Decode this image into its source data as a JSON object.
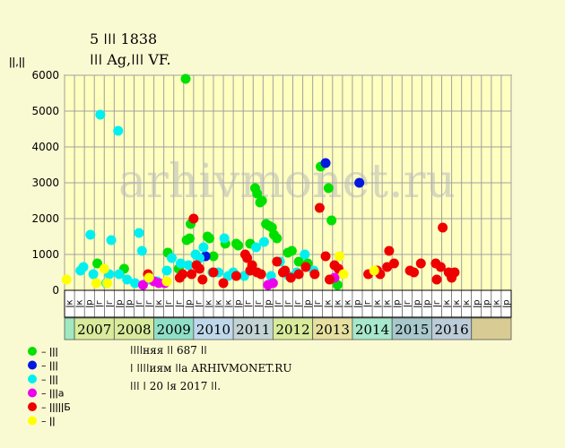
{
  "watermark": "arhivmonet.ru",
  "info": {
    "line1": "ǀǀǀǀняя ǀǀ 687 ǀǀ",
    "line2": "ǀ ǀǀǀǀиям ǀǀа ARHIVMONET.RU",
    "line3": "ǀǀǀ ǀ 20 ǀя 2017 ǀǀ."
  },
  "chart_data": {
    "type": "scatter",
    "title": "5 ǀǀǀ 1838",
    "subtitle": "ǀǀǀ Ag,ǀǀǀ VF.",
    "ylabel": "ǀǀ,ǀǀ",
    "ylim": [
      0,
      6000
    ],
    "yticks": [
      0,
      1000,
      2000,
      3000,
      4000,
      5000,
      6000
    ],
    "grid": true,
    "categories": [
      "ǀк",
      "ǀк",
      "ǀр",
      "ǀг",
      "ǀг",
      "ǀр",
      "ǀр",
      "ǀг",
      "ǀг",
      "ǀк",
      "ǀг",
      "ǀг",
      "ǀр",
      "ǀг",
      "ǀк",
      "ǀк",
      "ǀк",
      "ǀр",
      "ǀг",
      "ǀг",
      "ǀр",
      "ǀг",
      "ǀг",
      "ǀг",
      "ǀр",
      "ǀг",
      "ǀк",
      "ǀк",
      "ǀк",
      "ǀр",
      "ǀг",
      "ǀк",
      "ǀк",
      "ǀр",
      "ǀг",
      "ǀр",
      "ǀр",
      "ǀг",
      "ǀк",
      "ǀк",
      "ǀк",
      "ǀр",
      "ǀр",
      "ǀк",
      "ǀр"
    ],
    "years": [
      {
        "label": "",
        "span": 1,
        "color": "#a0e8c0"
      },
      {
        "label": "2007",
        "span": 4,
        "color": "#d8ec9c"
      },
      {
        "label": "2008",
        "span": 4,
        "color": "#d8ec9c"
      },
      {
        "label": "2009",
        "span": 4,
        "color": "#90e0c8"
      },
      {
        "label": "2010",
        "span": 4,
        "color": "#c0d8ec"
      },
      {
        "label": "2011",
        "span": 4,
        "color": "#c4d4d4"
      },
      {
        "label": "2012",
        "span": 4,
        "color": "#d8ec9c"
      },
      {
        "label": "2013",
        "span": 4,
        "color": "#e8e0a0"
      },
      {
        "label": "2014",
        "span": 4,
        "color": "#a8e8cc"
      },
      {
        "label": "2015",
        "span": 4,
        "color": "#a8c8cc"
      },
      {
        "label": "2016",
        "span": 4,
        "color": "#bcccd8"
      },
      {
        "label": "",
        "span": 4,
        "color": "#d8cc94"
      }
    ],
    "series": [
      {
        "name": "– ǀǀǀ",
        "color": "#00e000",
        "points": [
          [
            3.3,
            750
          ],
          [
            6.0,
            600
          ],
          [
            10.4,
            1050
          ],
          [
            11.5,
            600
          ],
          [
            12.3,
            1400
          ],
          [
            12.6,
            1450
          ],
          [
            12.7,
            1850
          ],
          [
            12.2,
            5900
          ],
          [
            14.4,
            1500
          ],
          [
            14.6,
            1450
          ],
          [
            15.0,
            950
          ],
          [
            16.2,
            1300
          ],
          [
            17.3,
            1300
          ],
          [
            17.5,
            1250
          ],
          [
            19.2,
            2850
          ],
          [
            19.4,
            2700
          ],
          [
            19.7,
            2450
          ],
          [
            19.9,
            2500
          ],
          [
            20.3,
            1850
          ],
          [
            20.6,
            1800
          ],
          [
            20.9,
            1750
          ],
          [
            21.1,
            1550
          ],
          [
            21.4,
            1450
          ],
          [
            22.5,
            1050
          ],
          [
            22.9,
            1100
          ],
          [
            23.6,
            800
          ],
          [
            24.5,
            750
          ],
          [
            25.8,
            3450
          ],
          [
            26.6,
            2850
          ],
          [
            26.9,
            1950
          ],
          [
            27.5,
            150
          ],
          [
            18.7,
            1300
          ]
        ]
      },
      {
        "name": "– ǀǀǀ",
        "color": "#0018e0",
        "points": [
          [
            14.2,
            950
          ],
          [
            26.3,
            3550
          ],
          [
            29.7,
            3000
          ]
        ]
      },
      {
        "name": "– ǀǀǀ",
        "color": "#00f0f0",
        "points": [
          [
            1.6,
            550
          ],
          [
            1.9,
            650
          ],
          [
            2.6,
            1550
          ],
          [
            2.9,
            450
          ],
          [
            3.6,
            4900
          ],
          [
            4.2,
            200
          ],
          [
            4.5,
            450
          ],
          [
            4.7,
            1400
          ],
          [
            5.5,
            450
          ],
          [
            5.4,
            4450
          ],
          [
            6.3,
            300
          ],
          [
            7.1,
            200
          ],
          [
            7.5,
            1600
          ],
          [
            7.8,
            1100
          ],
          [
            8.5,
            300
          ],
          [
            9.3,
            250
          ],
          [
            10.3,
            550
          ],
          [
            10.8,
            900
          ],
          [
            11.7,
            750
          ],
          [
            12.5,
            700
          ],
          [
            13.2,
            1000
          ],
          [
            13.6,
            900
          ],
          [
            14.0,
            1200
          ],
          [
            14.9,
            500
          ],
          [
            15.5,
            500
          ],
          [
            16.1,
            1450
          ],
          [
            16.5,
            400
          ],
          [
            17.0,
            500
          ],
          [
            18.1,
            400
          ],
          [
            19.3,
            1200
          ],
          [
            20.1,
            1350
          ],
          [
            20.8,
            400
          ],
          [
            21.7,
            800
          ],
          [
            22.6,
            400
          ],
          [
            23.4,
            500
          ],
          [
            24.2,
            1000
          ],
          [
            25.1,
            550
          ]
        ]
      },
      {
        "name": "– ǀǀǀа",
        "color": "#ee00ee",
        "points": [
          [
            7.9,
            150
          ],
          [
            9.0,
            250
          ],
          [
            9.5,
            200
          ],
          [
            10.1,
            200
          ],
          [
            20.5,
            150
          ],
          [
            21.0,
            200
          ],
          [
            27.2,
            350
          ]
        ]
      },
      {
        "name": "– ǀǀǀǀǀБ",
        "color": "#ee0000",
        "points": [
          [
            8.4,
            450
          ],
          [
            11.6,
            350
          ],
          [
            11.9,
            450
          ],
          [
            12.8,
            450
          ],
          [
            13.0,
            2000
          ],
          [
            13.3,
            700
          ],
          [
            13.6,
            600
          ],
          [
            13.9,
            300
          ],
          [
            15.0,
            500
          ],
          [
            16.0,
            200
          ],
          [
            17.3,
            400
          ],
          [
            18.2,
            1000
          ],
          [
            18.4,
            900
          ],
          [
            18.7,
            550
          ],
          [
            18.9,
            700
          ],
          [
            19.4,
            500
          ],
          [
            19.8,
            450
          ],
          [
            21.4,
            800
          ],
          [
            22.0,
            500
          ],
          [
            22.2,
            550
          ],
          [
            22.8,
            350
          ],
          [
            23.6,
            450
          ],
          [
            24.3,
            650
          ],
          [
            25.2,
            450
          ],
          [
            25.7,
            2300
          ],
          [
            26.3,
            950
          ],
          [
            26.7,
            300
          ],
          [
            27.2,
            700
          ],
          [
            27.6,
            600
          ],
          [
            30.6,
            450
          ],
          [
            31.5,
            550
          ],
          [
            31.8,
            450
          ],
          [
            32.5,
            650
          ],
          [
            32.7,
            1100
          ],
          [
            33.2,
            750
          ],
          [
            34.8,
            550
          ],
          [
            35.2,
            500
          ],
          [
            35.9,
            750
          ],
          [
            37.5,
            300
          ],
          [
            37.4,
            750
          ],
          [
            37.9,
            650
          ],
          [
            38.1,
            1750
          ],
          [
            38.7,
            500
          ],
          [
            39.0,
            350
          ],
          [
            39.3,
            500
          ]
        ]
      },
      {
        "name": "– ǀǀ",
        "color": "#ffff00",
        "points": [
          [
            0.2,
            300
          ],
          [
            3.2,
            200
          ],
          [
            4.0,
            600
          ],
          [
            4.3,
            200
          ],
          [
            8.5,
            350
          ],
          [
            10.3,
            250
          ],
          [
            27.7,
            950
          ],
          [
            28.1,
            450
          ],
          [
            31.2,
            550
          ]
        ]
      }
    ]
  }
}
